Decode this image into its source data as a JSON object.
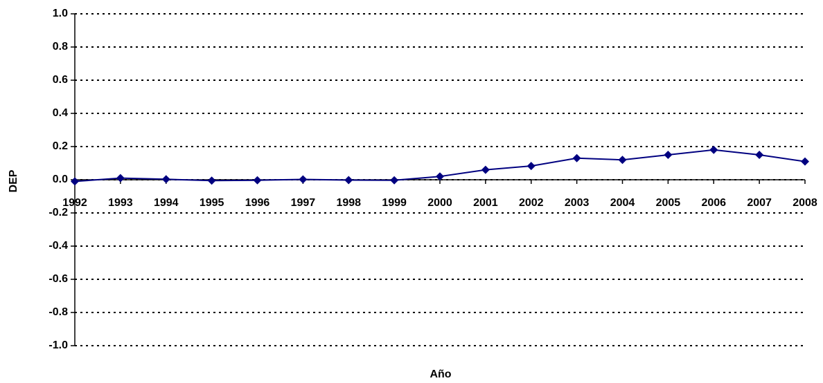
{
  "chart_data": {
    "type": "line",
    "x_label": "Año",
    "y_label": "DEP",
    "categories": [
      "1992",
      "1993",
      "1994",
      "1995",
      "1996",
      "1997",
      "1998",
      "1999",
      "2000",
      "2001",
      "2002",
      "2003",
      "2004",
      "2005",
      "2006",
      "2007",
      "2008"
    ],
    "series": [
      {
        "name": "DEP",
        "color": "#000080",
        "values": [
          -0.01,
          0.01,
          0.003,
          -0.005,
          -0.003,
          0.002,
          -0.002,
          -0.003,
          0.02,
          0.06,
          0.083,
          0.13,
          0.12,
          0.15,
          0.18,
          0.15,
          0.11
        ]
      }
    ],
    "ylim": [
      -1,
      1
    ],
    "yticks": [
      {
        "value": -1,
        "label": "-1.0"
      },
      -0.8,
      -0.6,
      -0.4,
      -0.2,
      {
        "value": 0,
        "label": "0.0"
      },
      0.2,
      0.4,
      0.6,
      0.8,
      {
        "value": 1,
        "label": "1.0"
      }
    ],
    "grid": true
  }
}
